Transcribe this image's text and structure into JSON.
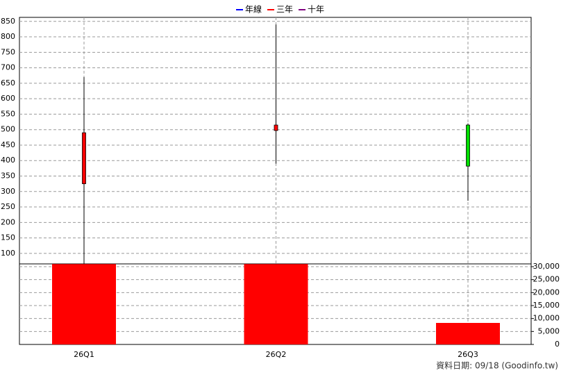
{
  "chart_data": {
    "type": "candlestick",
    "legend": [
      {
        "name": "年線",
        "color": "#0000ff"
      },
      {
        "name": "三年",
        "color": "#ff0000"
      },
      {
        "name": "十年",
        "color": "#800080"
      }
    ],
    "categories": [
      "26Q1",
      "26Q2",
      "26Q3"
    ],
    "open": [
      325,
      497,
      515
    ],
    "high": [
      670,
      840,
      520
    ],
    "low": [
      66,
      390,
      270
    ],
    "close": [
      490,
      515,
      382
    ],
    "up_color": "#ff0000",
    "down_color": "#00dd00",
    "ylim": [
      66,
      863
    ],
    "yticks": [
      100,
      150,
      200,
      250,
      300,
      350,
      400,
      450,
      500,
      550,
      600,
      650,
      700,
      750,
      800,
      850
    ],
    "volume": {
      "axis": "y2",
      "color": "#ff0000",
      "values": [
        31000,
        31000,
        8300
      ]
    },
    "y2lim": [
      0,
      31070
    ],
    "y2ticks": [
      0,
      {
        "value": 5000,
        "label": "5,000"
      },
      {
        "value": 10000,
        "label": "10,000"
      },
      {
        "value": 15000,
        "label": "15,000"
      },
      {
        "value": 20000,
        "label": "20,000"
      },
      {
        "value": 25000,
        "label": "25,000"
      },
      {
        "value": 30000,
        "label": "30,000"
      }
    ],
    "grid": true,
    "source": "資料日期: 09/18  (Goodinfo.tw)"
  }
}
